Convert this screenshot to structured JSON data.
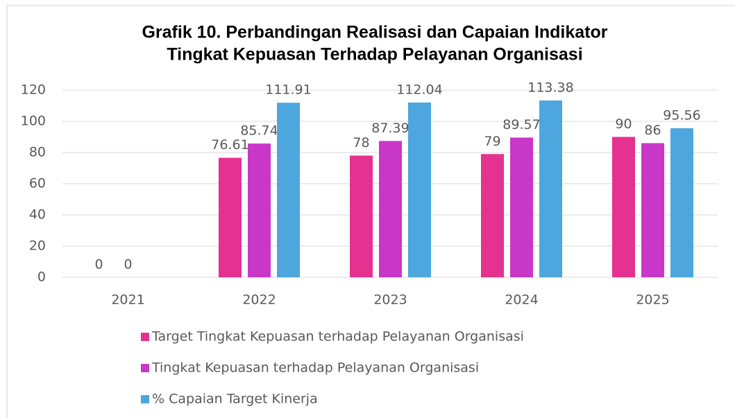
{
  "chart_data": {
    "type": "bar",
    "title": [
      "Grafik 10. Perbandingan Realisasi dan Capaian Indikator",
      "Tingkat Kepuasan Terhadap Pelayanan Organisasi"
    ],
    "categories": [
      "2021",
      "2022",
      "2023",
      "2024",
      "2025"
    ],
    "series": [
      {
        "name": "Target Tingkat Kepuasan terhadap Pelayanan Organisasi",
        "color": "#e5318f",
        "values": [
          0,
          76.61,
          78,
          79,
          90
        ]
      },
      {
        "name": "Tingkat Kepuasan terhadap Pelayanan Organisasi",
        "color": "#c837c8",
        "values": [
          0,
          85.74,
          87.39,
          89.57,
          86
        ]
      },
      {
        "name": "% Capaian Target Kinerja",
        "color": "#4da6de",
        "values": [
          null,
          111.91,
          112.04,
          113.38,
          95.56
        ]
      }
    ],
    "ylim": [
      0,
      120
    ],
    "yticks": [
      0,
      20,
      40,
      60,
      80,
      100,
      120
    ],
    "grid": true,
    "legend": "bottom"
  }
}
